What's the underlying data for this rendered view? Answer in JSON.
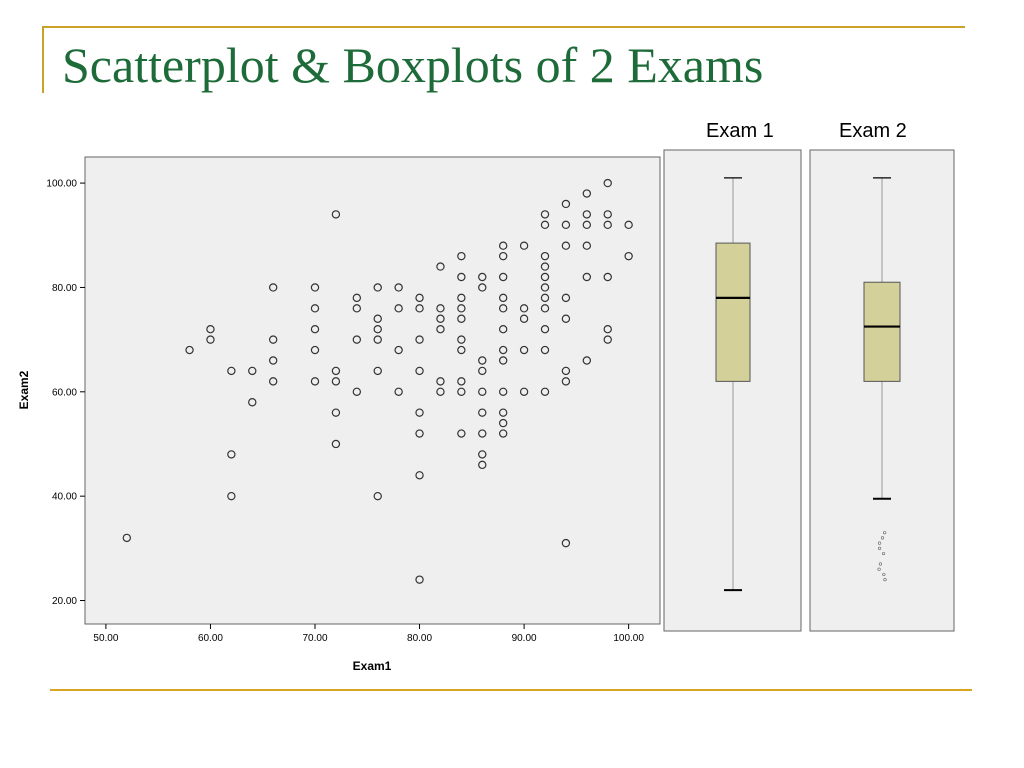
{
  "slide": {
    "title": "Scatterplot & Boxplots of 2 Exams"
  },
  "colors": {
    "title": "#1e6b3a",
    "accent": "#c9a227",
    "plot_bg": "#efefef",
    "box_fill": "#d4d09a",
    "marker": "#333333"
  },
  "chart_data": [
    {
      "type": "scatter",
      "title": "",
      "xlabel": "Exam1",
      "ylabel": "Exam2",
      "xlim": [
        48,
        103
      ],
      "ylim": [
        15.5,
        105
      ],
      "xticks": [
        "50.00",
        "60.00",
        "70.00",
        "80.00",
        "90.00",
        "100.00"
      ],
      "yticks": [
        "20.00",
        "40.00",
        "60.00",
        "80.00",
        "100.00"
      ],
      "grid": false,
      "points": [
        [
          52,
          32
        ],
        [
          58,
          68
        ],
        [
          60,
          72
        ],
        [
          60,
          70
        ],
        [
          62,
          64
        ],
        [
          62,
          48
        ],
        [
          62,
          40
        ],
        [
          64,
          64
        ],
        [
          64,
          58
        ],
        [
          66,
          80
        ],
        [
          66,
          70
        ],
        [
          66,
          66
        ],
        [
          66,
          62
        ],
        [
          70,
          80
        ],
        [
          70,
          76
        ],
        [
          70,
          72
        ],
        [
          70,
          68
        ],
        [
          70,
          62
        ],
        [
          72,
          94
        ],
        [
          72,
          64
        ],
        [
          72,
          62
        ],
        [
          72,
          56
        ],
        [
          72,
          50
        ],
        [
          74,
          78
        ],
        [
          74,
          76
        ],
        [
          74,
          70
        ],
        [
          74,
          60
        ],
        [
          76,
          80
        ],
        [
          76,
          74
        ],
        [
          76,
          72
        ],
        [
          76,
          70
        ],
        [
          76,
          64
        ],
        [
          76,
          40
        ],
        [
          78,
          80
        ],
        [
          78,
          76
        ],
        [
          78,
          68
        ],
        [
          78,
          60
        ],
        [
          80,
          78
        ],
        [
          80,
          76
        ],
        [
          80,
          70
        ],
        [
          80,
          64
        ],
        [
          80,
          56
        ],
        [
          80,
          52
        ],
        [
          80,
          44
        ],
        [
          80,
          24
        ],
        [
          82,
          84
        ],
        [
          82,
          76
        ],
        [
          82,
          74
        ],
        [
          82,
          72
        ],
        [
          82,
          62
        ],
        [
          82,
          60
        ],
        [
          84,
          86
        ],
        [
          84,
          82
        ],
        [
          84,
          78
        ],
        [
          84,
          76
        ],
        [
          84,
          74
        ],
        [
          84,
          70
        ],
        [
          84,
          68
        ],
        [
          84,
          62
        ],
        [
          84,
          60
        ],
        [
          84,
          52
        ],
        [
          86,
          82
        ],
        [
          86,
          80
        ],
        [
          86,
          66
        ],
        [
          86,
          64
        ],
        [
          86,
          60
        ],
        [
          86,
          56
        ],
        [
          86,
          52
        ],
        [
          86,
          48
        ],
        [
          86,
          46
        ],
        [
          88,
          88
        ],
        [
          88,
          86
        ],
        [
          88,
          82
        ],
        [
          88,
          78
        ],
        [
          88,
          76
        ],
        [
          88,
          72
        ],
        [
          88,
          68
        ],
        [
          88,
          66
        ],
        [
          88,
          60
        ],
        [
          88,
          56
        ],
        [
          88,
          54
        ],
        [
          88,
          52
        ],
        [
          90,
          88
        ],
        [
          90,
          76
        ],
        [
          90,
          74
        ],
        [
          90,
          68
        ],
        [
          90,
          60
        ],
        [
          92,
          94
        ],
        [
          92,
          92
        ],
        [
          92,
          86
        ],
        [
          92,
          84
        ],
        [
          92,
          82
        ],
        [
          92,
          80
        ],
        [
          92,
          78
        ],
        [
          92,
          76
        ],
        [
          92,
          72
        ],
        [
          92,
          68
        ],
        [
          92,
          60
        ],
        [
          94,
          96
        ],
        [
          94,
          92
        ],
        [
          94,
          88
        ],
        [
          94,
          78
        ],
        [
          94,
          74
        ],
        [
          94,
          64
        ],
        [
          94,
          62
        ],
        [
          94,
          31
        ],
        [
          96,
          98
        ],
        [
          96,
          94
        ],
        [
          96,
          92
        ],
        [
          96,
          88
        ],
        [
          96,
          82
        ],
        [
          96,
          66
        ],
        [
          98,
          100
        ],
        [
          98,
          94
        ],
        [
          98,
          92
        ],
        [
          98,
          82
        ],
        [
          98,
          72
        ],
        [
          98,
          70
        ],
        [
          100,
          92
        ],
        [
          100,
          86
        ]
      ]
    },
    {
      "type": "box",
      "title": "Exam 1",
      "whisker_high": 101,
      "q3": 88.5,
      "median": 78,
      "q1": 62,
      "whisker_low": 22
    },
    {
      "type": "box",
      "title": "Exam 2",
      "whisker_high": 101,
      "q3": 81,
      "median": 72.5,
      "q1": 62,
      "whisker_low": 39.5,
      "outliers": [
        33,
        32,
        31,
        30,
        29,
        27,
        26,
        25,
        24
      ]
    }
  ]
}
